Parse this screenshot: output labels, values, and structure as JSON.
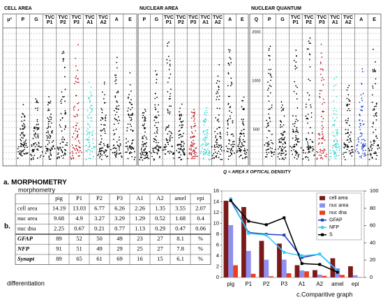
{
  "panels": [
    {
      "title": "CELL AREA",
      "axis": "μ²",
      "columns": [
        {
          "lines": [
            "P"
          ],
          "color": "#000000"
        },
        {
          "lines": [
            "G"
          ],
          "color": "#000000"
        },
        {
          "lines": [
            "TVC",
            "P1"
          ],
          "color": "#000000"
        },
        {
          "lines": [
            "TVC",
            "P2"
          ],
          "color": "#000000"
        },
        {
          "lines": [
            "TVC",
            "P3"
          ],
          "color": "#c0141e"
        },
        {
          "lines": [
            "TVC",
            "A1"
          ],
          "color": "#33d6d6"
        },
        {
          "lines": [
            "TVC",
            "A2"
          ],
          "color": "#000000"
        },
        {
          "lines": [
            "A"
          ],
          "color": "#000000"
        },
        {
          "lines": [
            "E"
          ],
          "color": "#000000"
        }
      ]
    },
    {
      "title": "NUCLEAR AREA",
      "columns": [
        {
          "lines": [
            "P"
          ],
          "color": "#000000"
        },
        {
          "lines": [
            "G"
          ],
          "color": "#000000"
        },
        {
          "lines": [
            "TVC",
            "P1"
          ],
          "color": "#000000"
        },
        {
          "lines": [
            "TVC",
            "P2"
          ],
          "color": "#000000"
        },
        {
          "lines": [
            "TVC",
            "P3"
          ],
          "color": "#c0141e"
        },
        {
          "lines": [
            "TVC",
            "A1"
          ],
          "color": "#33d6d6"
        },
        {
          "lines": [
            "TVC",
            "A2"
          ],
          "color": "#000000"
        },
        {
          "lines": [
            "A"
          ],
          "color": "#000000"
        },
        {
          "lines": [
            "E"
          ],
          "color": "#000000"
        }
      ]
    },
    {
      "title": "NUCLEAR QUANTUM",
      "axis": "Q",
      "axis_labels": [
        "2000",
        "1000",
        "500"
      ],
      "columns": [
        {
          "lines": [
            "P"
          ],
          "color": "#000000"
        },
        {
          "lines": [
            "G"
          ],
          "color": "#000000"
        },
        {
          "lines": [
            "TVC",
            "P1"
          ],
          "color": "#000000"
        },
        {
          "lines": [
            "TVC",
            "P2"
          ],
          "color": "#000000"
        },
        {
          "lines": [
            "TVC",
            "P3"
          ],
          "color": "#c0141e"
        },
        {
          "lines": [
            "TVC",
            "A1"
          ],
          "color": "#33d6d6"
        },
        {
          "lines": [
            "TVC",
            "A2"
          ],
          "color": "#000000"
        },
        {
          "lines": [
            "A"
          ],
          "color": "#1f3fd0"
        },
        {
          "lines": [
            "E"
          ],
          "color": "#000000"
        }
      ]
    }
  ],
  "caption": "Q = AREA X OPTICAL DENSITY",
  "section_a": "a. MORPHOMETRY",
  "section_b": "b.",
  "table": {
    "title": "morphometry",
    "columns": [
      "pig",
      "P1",
      "P2",
      "P3",
      "A1",
      "A2",
      "amel",
      "epi"
    ],
    "rows": [
      {
        "label": "cell area",
        "cells": [
          14.19,
          13.03,
          6.77,
          6.26,
          2.26,
          1.35,
          3.55,
          2.07
        ]
      },
      {
        "label": "nuc area",
        "cells": [
          9.68,
          4.9,
          3.27,
          3.29,
          1.29,
          0.52,
          1.68,
          0.4
        ]
      },
      {
        "label": "nuc dna",
        "cells": [
          2.25,
          0.67,
          0.21,
          0.77,
          1.13,
          0.29,
          0.47,
          0.06
        ]
      },
      {
        "label": "GFAP",
        "cells": [
          89,
          52,
          50,
          49,
          23,
          27,
          8.1,
          "%"
        ]
      },
      {
        "label": "NFP",
        "cells": [
          91,
          51,
          49,
          29,
          25,
          27,
          7.8,
          "%"
        ]
      },
      {
        "label": "Synapt",
        "cells": [
          89,
          65,
          61,
          69,
          16,
          15,
          6.1,
          "%"
        ]
      }
    ],
    "footer": "differentiation"
  },
  "chart_data": {
    "type": "combo",
    "title": "c.Comparitive graph",
    "categories": [
      "pig",
      "P1",
      "P2",
      "P3",
      "A1",
      "A2",
      "amel",
      "epi"
    ],
    "ylim": [
      0,
      16
    ],
    "yticks": [
      0,
      2,
      4,
      6,
      8,
      10,
      12,
      14,
      16
    ],
    "y2lim": [
      0,
      100
    ],
    "y2ticks": [
      0,
      20,
      40,
      60,
      80,
      100
    ],
    "legend": "top-right",
    "series": [
      {
        "name": "cell area",
        "kind": "bar",
        "color": "#7a1a1a",
        "values": [
          14.19,
          13.03,
          6.77,
          6.26,
          2.26,
          1.35,
          3.55,
          2.07
        ]
      },
      {
        "name": "nuc area",
        "kind": "bar",
        "color": "#8f8fef",
        "values": [
          9.68,
          4.9,
          3.27,
          3.29,
          1.29,
          0.52,
          1.68,
          0.4
        ]
      },
      {
        "name": "nuc dna",
        "kind": "bar",
        "color": "#e8401e",
        "values": [
          2.25,
          0.67,
          0.21,
          0.77,
          1.13,
          0.29,
          0.47,
          0.06
        ]
      },
      {
        "name": "GFAP",
        "kind": "line",
        "axis": "y2",
        "color": "#1f3fbf",
        "values": [
          89,
          52,
          50,
          49,
          23,
          27,
          8.1,
          null
        ]
      },
      {
        "name": "NFP",
        "kind": "line",
        "axis": "y2",
        "color": "#33ccff",
        "values": [
          91,
          51,
          49,
          29,
          25,
          27,
          7.8,
          null
        ]
      },
      {
        "name": "S",
        "kind": "line",
        "axis": "y2",
        "color": "#000000",
        "values": [
          89,
          65,
          61,
          69,
          16,
          15,
          6.1,
          null
        ]
      }
    ]
  }
}
